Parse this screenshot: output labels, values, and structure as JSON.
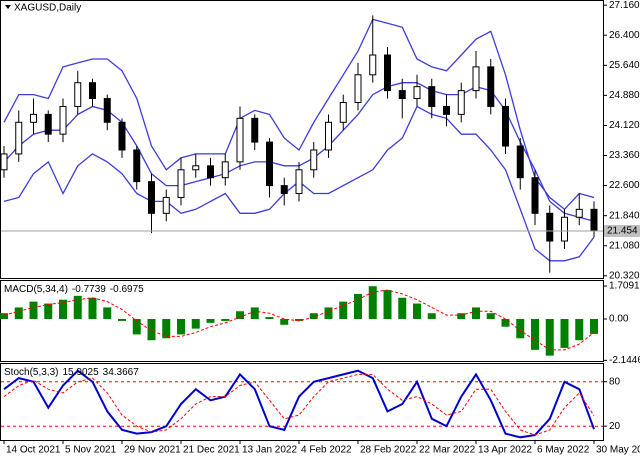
{
  "chart_data": [
    {
      "type": "candlestick",
      "title": "XAGUSD,Daily",
      "categories": [
        "14 Oct 2021",
        null,
        null,
        null,
        "5 Nov 2021",
        null,
        null,
        null,
        "29 Nov 2021",
        null,
        null,
        null,
        "21 Dec 2021",
        null,
        null,
        null,
        "13 Jan 2022",
        null,
        null,
        null,
        "4 Feb 2022",
        null,
        null,
        null,
        "28 Feb 2022",
        null,
        null,
        null,
        "22 Mar 2022",
        null,
        null,
        null,
        "13 Apr 2022",
        null,
        null,
        null,
        "6 May 2022",
        null,
        null,
        null,
        "30 May 2022"
      ],
      "open": [
        23.0,
        23.4,
        24.2,
        24.4,
        23.9,
        24.6,
        25.2,
        24.8,
        24.2,
        23.5,
        22.7,
        21.9,
        22.3,
        23.0,
        23.1,
        22.8,
        23.2,
        24.3,
        23.7,
        22.6,
        22.4,
        23.0,
        23.5,
        24.2,
        24.7,
        25.4,
        25.9,
        25.0,
        24.8,
        25.1,
        24.6,
        24.4,
        25.0,
        25.6,
        24.6,
        23.6,
        22.8,
        21.9,
        21.2,
        21.8,
        22.0
      ],
      "high": [
        23.6,
        24.5,
        24.8,
        24.5,
        24.8,
        25.5,
        25.3,
        24.9,
        24.3,
        23.6,
        22.9,
        22.5,
        23.3,
        23.4,
        23.3,
        23.4,
        24.6,
        24.4,
        23.8,
        22.8,
        23.2,
        23.7,
        24.4,
        24.9,
        25.7,
        26.9,
        26.1,
        25.3,
        25.4,
        25.3,
        24.9,
        25.2,
        26.0,
        25.8,
        24.8,
        23.8,
        23.0,
        22.1,
        22.0,
        22.4,
        22.2
      ],
      "low": [
        22.8,
        23.2,
        23.9,
        23.7,
        23.7,
        24.4,
        24.6,
        24.0,
        23.3,
        22.5,
        21.4,
        21.7,
        22.1,
        22.8,
        22.6,
        22.6,
        23.0,
        23.5,
        22.3,
        22.1,
        22.2,
        22.8,
        23.3,
        24.0,
        24.5,
        25.2,
        24.8,
        24.3,
        24.6,
        24.3,
        24.1,
        24.2,
        24.8,
        24.4,
        23.4,
        22.5,
        21.6,
        20.4,
        21.0,
        21.6,
        21.3
      ],
      "close": [
        23.4,
        24.2,
        24.4,
        23.9,
        24.6,
        25.2,
        24.8,
        24.2,
        23.5,
        22.7,
        21.9,
        22.3,
        23.0,
        23.1,
        22.8,
        23.2,
        24.3,
        23.7,
        22.6,
        22.4,
        23.0,
        23.5,
        24.2,
        24.7,
        25.4,
        25.9,
        25.0,
        24.8,
        25.1,
        24.6,
        24.4,
        25.0,
        25.6,
        24.6,
        23.6,
        22.8,
        21.9,
        21.2,
        21.8,
        22.0,
        21.454
      ],
      "bands": [
        {
          "color": "#3c3cdc",
          "values": [
            24.2,
            24.9,
            24.9,
            24.8,
            25.6,
            25.7,
            25.8,
            25.8,
            25.5,
            24.8,
            23.6,
            23.0,
            23.3,
            23.4,
            23.4,
            23.4,
            24.3,
            24.5,
            24.4,
            23.8,
            23.5,
            24.2,
            24.8,
            25.4,
            26.0,
            26.8,
            26.7,
            26.6,
            25.8,
            25.6,
            25.5,
            25.9,
            26.3,
            26.5,
            25.4,
            24.0,
            22.8,
            22.3,
            22.0,
            22.4,
            22.3
          ]
        },
        {
          "color": "#3c3cdc",
          "values": [
            23.2,
            23.6,
            23.9,
            24.0,
            24.0,
            24.4,
            24.6,
            24.5,
            24.2,
            23.6,
            22.9,
            22.6,
            22.6,
            22.7,
            22.8,
            22.9,
            23.1,
            23.2,
            23.2,
            23.1,
            23.1,
            23.3,
            23.6,
            24.0,
            24.4,
            24.9,
            25.1,
            25.2,
            25.2,
            25.0,
            24.9,
            24.9,
            25.1,
            25.0,
            24.5,
            23.7,
            23.0,
            22.2,
            21.9,
            21.8,
            21.7
          ]
        },
        {
          "color": "#3c3cdc",
          "values": [
            22.2,
            22.3,
            22.9,
            23.2,
            22.4,
            23.1,
            23.4,
            23.2,
            22.9,
            22.4,
            22.2,
            22.2,
            21.9,
            22.0,
            22.2,
            22.4,
            21.9,
            21.9,
            22.0,
            22.4,
            22.7,
            22.4,
            22.4,
            22.6,
            22.8,
            23.0,
            23.5,
            23.8,
            24.6,
            24.4,
            24.3,
            23.9,
            23.9,
            23.5,
            23.0,
            22.0,
            21.0,
            20.7,
            20.7,
            20.8,
            21.3
          ]
        }
      ],
      "ylim": [
        20.24,
        27.29
      ],
      "yticks": [
        {
          "value": 27.16,
          "label": "27.160"
        },
        {
          "value": 26.4,
          "label": "26.400"
        },
        {
          "value": 25.64,
          "label": "25.640"
        },
        {
          "value": 24.88,
          "label": "24.880"
        },
        {
          "value": 24.12,
          "label": "24.120"
        },
        {
          "value": 23.36,
          "label": "23.360"
        },
        {
          "value": 22.6,
          "label": "22.600"
        },
        {
          "value": 21.84,
          "label": "21.840"
        },
        {
          "value": 21.08,
          "label": "21.080"
        },
        {
          "value": 20.32,
          "label": "20.320"
        }
      ]
    },
    {
      "type": "macd",
      "title": "MACD(5,34,4)",
      "series": [
        {
          "color": "#008000",
          "values": [
            0.3,
            0.6,
            0.9,
            0.8,
            1.0,
            1.2,
            1.1,
            0.6,
            -0.1,
            -0.8,
            -1.1,
            -1.0,
            -0.8,
            -0.5,
            -0.2,
            -0.1,
            0.4,
            0.6,
            0.1,
            -0.3,
            -0.1,
            0.3,
            0.6,
            0.9,
            1.3,
            1.7,
            1.5,
            1.1,
            0.8,
            0.3,
            0.0,
            0.3,
            0.6,
            0.3,
            -0.4,
            -1.0,
            -1.6,
            -1.9,
            -1.5,
            -1.1,
            -0.7739
          ]
        },
        {
          "color": "#ff0000",
          "values": [
            0.2,
            0.4,
            0.6,
            0.75,
            0.85,
            1.0,
            1.1,
            0.9,
            0.5,
            -0.1,
            -0.6,
            -0.9,
            -0.9,
            -0.7,
            -0.4,
            -0.2,
            0.1,
            0.4,
            0.3,
            0.0,
            -0.1,
            0.1,
            0.4,
            0.7,
            1.0,
            1.4,
            1.5,
            1.3,
            1.0,
            0.6,
            0.2,
            0.2,
            0.4,
            0.4,
            0.0,
            -0.6,
            -1.1,
            -1.6,
            -1.6,
            -1.3,
            -0.6975
          ]
        }
      ],
      "ylim": [
        -2.23,
        1.97
      ],
      "yticks": [
        1.7091,
        {
          "value": 0,
          "label": "0.00"
        },
        -2.1446
      ]
    },
    {
      "type": "stochastic",
      "title": "Stoch(5,3,3)",
      "series": [
        {
          "color": "#0000cd",
          "values": [
            70,
            85,
            80,
            45,
            75,
            95,
            80,
            40,
            15,
            10,
            12,
            20,
            50,
            70,
            55,
            60,
            90,
            70,
            20,
            15,
            60,
            80,
            85,
            90,
            95,
            85,
            40,
            50,
            80,
            30,
            20,
            60,
            90,
            55,
            10,
            5,
            8,
            30,
            80,
            70,
            15.9025
          ]
        },
        {
          "color": "#ff0000",
          "values": [
            60,
            75,
            82,
            70,
            65,
            80,
            85,
            65,
            35,
            20,
            12,
            15,
            30,
            50,
            60,
            60,
            75,
            80,
            55,
            30,
            35,
            60,
            80,
            85,
            90,
            90,
            70,
            55,
            60,
            50,
            35,
            40,
            70,
            70,
            40,
            15,
            8,
            15,
            45,
            65,
            34.3667
          ]
        }
      ],
      "ylim": [
        0,
        104
      ],
      "yticks": [
        20,
        80
      ],
      "grid_color": "#ff0000"
    }
  ]
}
